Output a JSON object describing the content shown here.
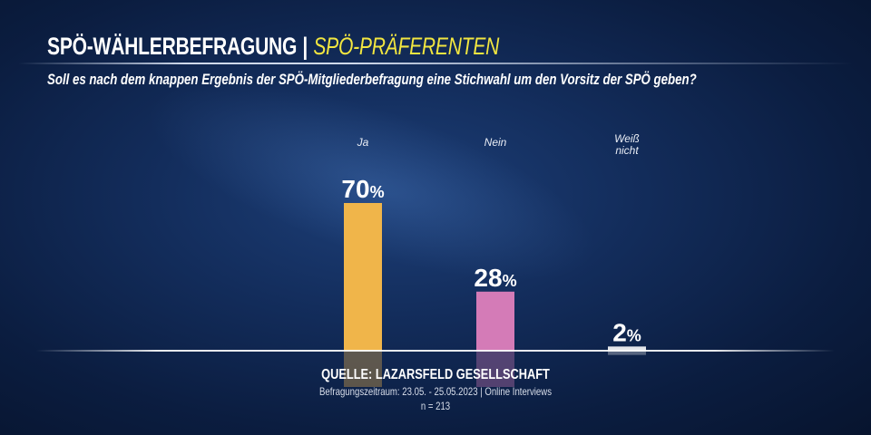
{
  "header": {
    "title": "SPÖ-WÄHLERBEFRAGUNG",
    "separator": "|",
    "subtitle": "SPÖ-PRÄFERENTEN"
  },
  "question": "Soll es nach dem knappen Ergebnis der SPÖ-Mitgliederbefragung eine Stichwahl um den Vorsitz der SPÖ geben?",
  "chart_data": {
    "type": "bar",
    "categories": [
      "Ja",
      "Nein",
      "Weiß nicht"
    ],
    "category_lines": [
      [
        "Ja"
      ],
      [
        "Nein"
      ],
      [
        "Weiß",
        "nicht"
      ]
    ],
    "values": [
      70,
      28,
      2
    ],
    "value_labels": [
      "70",
      "28",
      "2"
    ],
    "unit": "%",
    "colors": [
      "#f0b54a",
      "#d47bb7",
      "#e4e6ea"
    ],
    "ylim": [
      0,
      100
    ],
    "grid": false
  },
  "source": {
    "line1": "QUELLE:  LAZARSFELD GESELLSCHAFT",
    "line2": "Befragungszeitraum: 23.05. - 25.05.2023 | Online Interviews",
    "line3": "n = 213"
  }
}
